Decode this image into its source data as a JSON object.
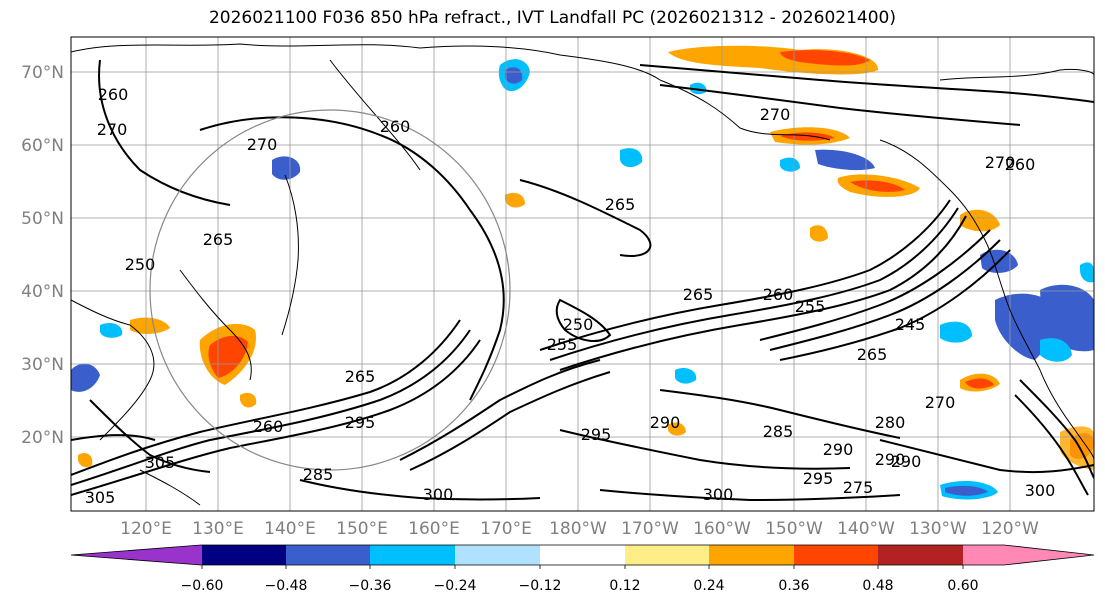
{
  "title": "2026021100 F036 850 hPa refract., IVT Landfall PC (2026021312 - 2026021400)",
  "lat_labels": [
    "70°N",
    "60°N",
    "50°N",
    "40°N",
    "30°N",
    "20°N"
  ],
  "lon_labels": [
    "120°E",
    "130°E",
    "140°E",
    "150°E",
    "160°E",
    "170°E",
    "180°W",
    "170°W",
    "160°W",
    "150°W",
    "140°W",
    "130°W",
    "120°W"
  ],
  "colorbar": {
    "colors": [
      "#9933cc",
      "#000080",
      "#3a5fcd",
      "#00bfff",
      "#b0e2ff",
      "#ffffff",
      "#ffee88",
      "#ffa500",
      "#ff4500",
      "#b22222",
      "#ff88b4"
    ],
    "tick_labels": [
      "−0.60",
      "−0.48",
      "−0.36",
      "−0.24",
      "−0.12",
      "0.12",
      "0.24",
      "0.36",
      "0.48",
      "0.60"
    ],
    "tick_values": [
      -0.6,
      -0.48,
      -0.36,
      -0.24,
      -0.12,
      0.12,
      0.24,
      0.36,
      0.48,
      0.6
    ]
  },
  "contour_labels": [
    "260",
    "270",
    "270",
    "250",
    "265",
    "260",
    "265",
    "260",
    "255",
    "250",
    "255",
    "265",
    "265",
    "260",
    "295",
    "295",
    "300",
    "305",
    "305",
    "285",
    "290",
    "295",
    "290",
    "285",
    "290",
    "280",
    "275",
    "270",
    "265",
    "245",
    "270",
    "260",
    "270",
    "300",
    "300",
    "290"
  ]
}
